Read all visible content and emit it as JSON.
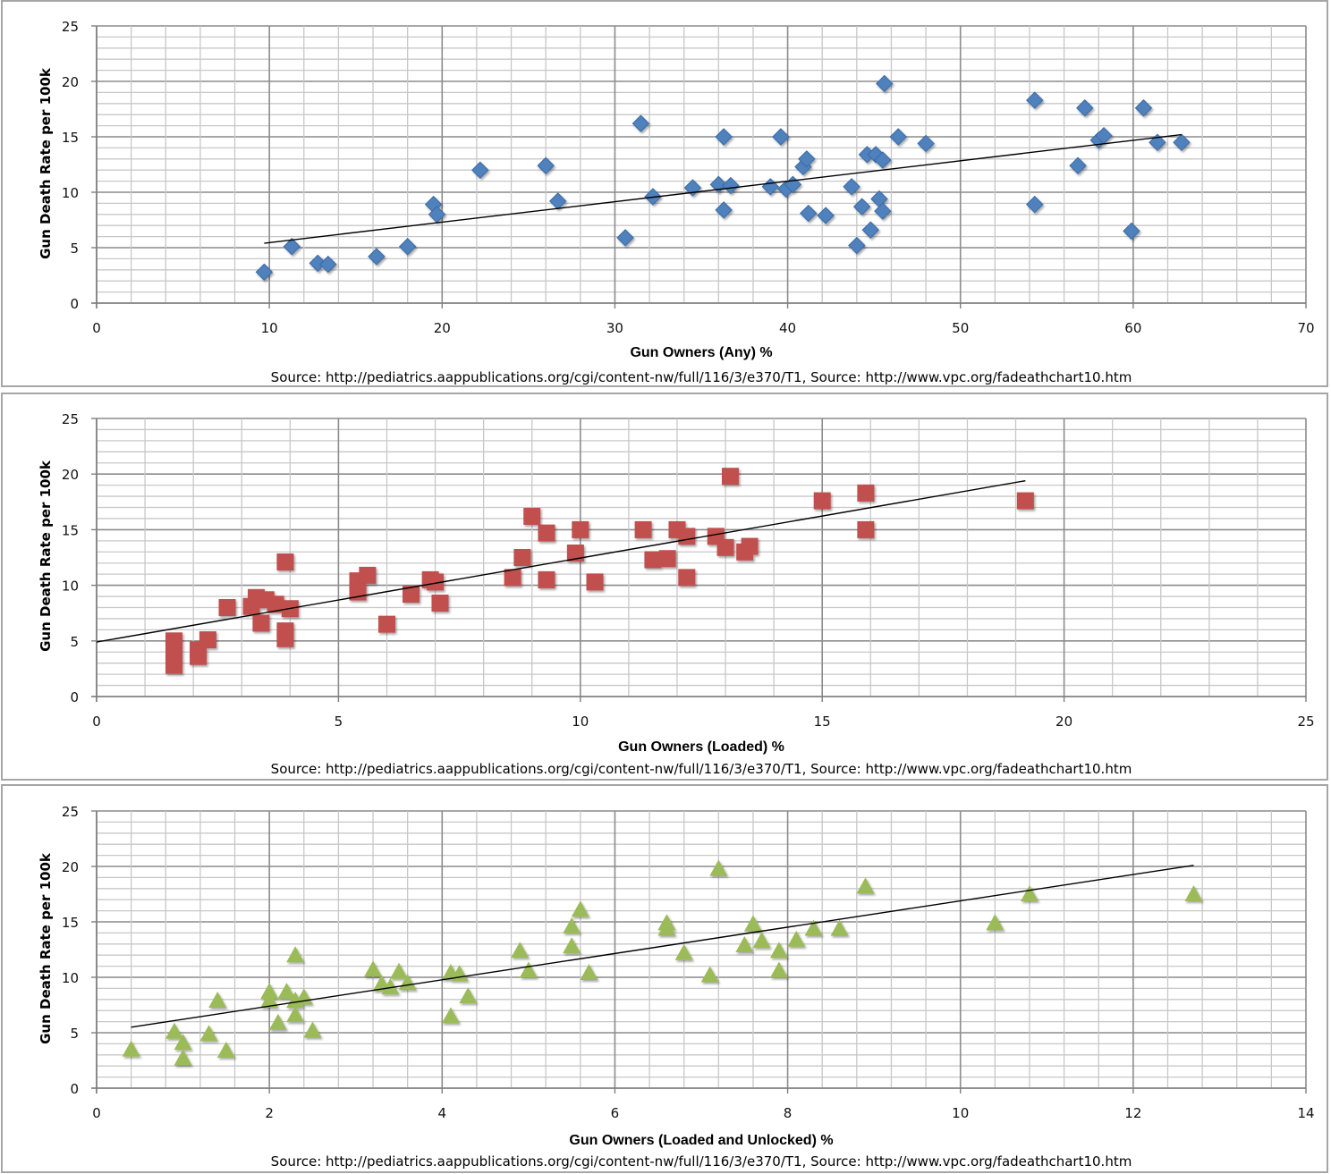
{
  "chart_data": [
    {
      "type": "scatter",
      "title": "",
      "xlabel": "Gun Owners (Any) %",
      "ylabel": "Gun Death Rate per 100k",
      "source": "Source: http://pediatrics.aappublications.org/cgi/content-nw/full/116/3/e370/T1, Source: http://www.vpc.org/fadeathchart10.htm",
      "xlim": [
        0,
        70
      ],
      "ylim": [
        0,
        25
      ],
      "x_major": 10,
      "x_minor": 2,
      "y_major": 5,
      "y_minor": 1,
      "grid": true,
      "x_ticks": [
        "0",
        "10",
        "20",
        "30",
        "40",
        "50",
        "60",
        "70"
      ],
      "y_ticks": [
        "0",
        "5",
        "10",
        "15",
        "20",
        "25"
      ],
      "marker": "diamond",
      "color": "#4f81bd",
      "trendline": {
        "x": [
          9.7,
          62.8
        ],
        "y": [
          5.4,
          15.2
        ]
      },
      "series": [
        {
          "name": "Any",
          "points": [
            [
              9.7,
              2.8
            ],
            [
              11.3,
              5.1
            ],
            [
              12.8,
              3.6
            ],
            [
              13.4,
              3.5
            ],
            [
              16.2,
              4.2
            ],
            [
              18.0,
              5.1
            ],
            [
              19.5,
              8.9
            ],
            [
              19.7,
              8.0
            ],
            [
              22.2,
              12.0
            ],
            [
              26.0,
              12.4
            ],
            [
              26.7,
              9.2
            ],
            [
              30.6,
              5.9
            ],
            [
              31.5,
              16.2
            ],
            [
              32.2,
              9.6
            ],
            [
              34.5,
              10.4
            ],
            [
              36.0,
              10.7
            ],
            [
              36.3,
              8.4
            ],
            [
              36.3,
              15.0
            ],
            [
              36.7,
              10.6
            ],
            [
              39.0,
              10.5
            ],
            [
              39.6,
              15.0
            ],
            [
              39.9,
              10.3
            ],
            [
              40.3,
              10.7
            ],
            [
              40.9,
              12.3
            ],
            [
              41.1,
              13.0
            ],
            [
              41.2,
              8.1
            ],
            [
              42.2,
              7.9
            ],
            [
              43.7,
              10.5
            ],
            [
              44.0,
              5.2
            ],
            [
              44.3,
              8.7
            ],
            [
              44.6,
              13.4
            ],
            [
              44.8,
              6.6
            ],
            [
              45.1,
              13.4
            ],
            [
              45.3,
              9.4
            ],
            [
              45.5,
              12.9
            ],
            [
              45.5,
              8.3
            ],
            [
              45.6,
              19.8
            ],
            [
              46.4,
              15.0
            ],
            [
              48.0,
              14.4
            ],
            [
              54.3,
              18.3
            ],
            [
              54.3,
              8.9
            ],
            [
              56.8,
              12.4
            ],
            [
              57.2,
              17.6
            ],
            [
              58.0,
              14.7
            ],
            [
              58.3,
              15.1
            ],
            [
              59.9,
              6.5
            ],
            [
              60.6,
              17.6
            ],
            [
              61.4,
              14.5
            ],
            [
              62.8,
              14.5
            ]
          ]
        }
      ]
    },
    {
      "type": "scatter",
      "title": "",
      "xlabel": "Gun Owners (Loaded) %",
      "ylabel": "Gun Death Rate per 100k",
      "source": "Source: http://pediatrics.aappublications.org/cgi/content-nw/full/116/3/e370/T1, Source: http://www.vpc.org/fadeathchart10.htm",
      "xlim": [
        0,
        25
      ],
      "ylim": [
        0,
        25
      ],
      "x_major": 5,
      "x_minor": 1,
      "y_major": 5,
      "y_minor": 1,
      "grid": true,
      "x_ticks": [
        "0",
        "5",
        "10",
        "15",
        "20",
        "25"
      ],
      "y_ticks": [
        "0",
        "5",
        "10",
        "15",
        "20",
        "25"
      ],
      "marker": "square",
      "color": "#c0504d",
      "trendline": {
        "x": [
          0,
          19.2
        ],
        "y": [
          4.9,
          19.4
        ]
      },
      "series": [
        {
          "name": "Loaded",
          "points": [
            [
              1.6,
              2.8
            ],
            [
              1.6,
              3.5
            ],
            [
              1.6,
              4.2
            ],
            [
              1.6,
              5.0
            ],
            [
              2.1,
              3.6
            ],
            [
              2.1,
              4.2
            ],
            [
              2.3,
              5.1
            ],
            [
              2.7,
              8.0
            ],
            [
              3.2,
              8.1
            ],
            [
              3.3,
              8.9
            ],
            [
              3.4,
              6.6
            ],
            [
              3.5,
              8.7
            ],
            [
              3.7,
              8.3
            ],
            [
              3.9,
              5.2
            ],
            [
              3.9,
              5.9
            ],
            [
              3.9,
              12.1
            ],
            [
              4.0,
              7.9
            ],
            [
              5.4,
              9.4
            ],
            [
              5.4,
              10.4
            ],
            [
              5.6,
              10.9
            ],
            [
              6.0,
              6.5
            ],
            [
              6.5,
              9.2
            ],
            [
              6.9,
              10.5
            ],
            [
              7.0,
              10.3
            ],
            [
              7.1,
              8.4
            ],
            [
              8.6,
              10.7
            ],
            [
              8.8,
              12.5
            ],
            [
              9.0,
              16.2
            ],
            [
              9.3,
              10.5
            ],
            [
              9.3,
              14.7
            ],
            [
              9.9,
              12.9
            ],
            [
              10.0,
              15.0
            ],
            [
              10.3,
              10.3
            ],
            [
              11.3,
              15.0
            ],
            [
              11.5,
              12.3
            ],
            [
              11.8,
              12.4
            ],
            [
              12.0,
              15.0
            ],
            [
              12.2,
              10.7
            ],
            [
              12.2,
              14.4
            ],
            [
              12.8,
              14.4
            ],
            [
              13.0,
              13.4
            ],
            [
              13.1,
              19.8
            ],
            [
              13.4,
              13.0
            ],
            [
              13.5,
              13.5
            ],
            [
              15.0,
              17.6
            ],
            [
              15.9,
              18.3
            ],
            [
              15.9,
              15.0
            ],
            [
              19.2,
              17.6
            ]
          ]
        }
      ]
    },
    {
      "type": "scatter",
      "title": "",
      "xlabel": "Gun Owners (Loaded and Unlocked) %",
      "ylabel": "Gun Death Rate per 100k",
      "source": "Source: http://pediatrics.aappublications.org/cgi/content-nw/full/116/3/e370/T1, Source: http://www.vpc.org/fadeathchart10.htm",
      "xlim": [
        0,
        14
      ],
      "ylim": [
        0,
        25
      ],
      "x_major": 2,
      "x_minor": 0.4,
      "y_major": 5,
      "y_minor": 1,
      "grid": true,
      "x_ticks": [
        "0",
        "2",
        "4",
        "6",
        "8",
        "10",
        "12",
        "14"
      ],
      "y_ticks": [
        "0",
        "5",
        "10",
        "15",
        "20",
        "25"
      ],
      "marker": "triangle",
      "color": "#9bbb59",
      "trendline": {
        "x": [
          0.4,
          12.7
        ],
        "y": [
          5.5,
          20.1
        ]
      },
      "series": [
        {
          "name": "Loaded and Unlocked",
          "points": [
            [
              0.4,
              3.5
            ],
            [
              0.9,
              5.1
            ],
            [
              1.0,
              4.1
            ],
            [
              1.0,
              2.7
            ],
            [
              1.3,
              4.9
            ],
            [
              1.4,
              7.9
            ],
            [
              1.5,
              3.4
            ],
            [
              2.0,
              8.7
            ],
            [
              2.0,
              7.9
            ],
            [
              2.1,
              5.9
            ],
            [
              2.2,
              8.7
            ],
            [
              2.3,
              7.9
            ],
            [
              2.3,
              6.6
            ],
            [
              2.3,
              12.0
            ],
            [
              2.4,
              8.2
            ],
            [
              2.5,
              5.2
            ],
            [
              3.2,
              10.7
            ],
            [
              3.3,
              9.4
            ],
            [
              3.4,
              9.1
            ],
            [
              3.5,
              10.5
            ],
            [
              3.6,
              9.5
            ],
            [
              4.1,
              10.4
            ],
            [
              4.1,
              6.5
            ],
            [
              4.2,
              10.3
            ],
            [
              4.3,
              8.3
            ],
            [
              4.9,
              12.4
            ],
            [
              5.0,
              10.6
            ],
            [
              5.5,
              12.8
            ],
            [
              5.5,
              14.6
            ],
            [
              5.6,
              16.1
            ],
            [
              5.7,
              10.4
            ],
            [
              6.6,
              14.9
            ],
            [
              6.6,
              14.4
            ],
            [
              6.8,
              12.2
            ],
            [
              7.1,
              10.2
            ],
            [
              7.2,
              19.8
            ],
            [
              7.5,
              12.9
            ],
            [
              7.6,
              14.8
            ],
            [
              7.7,
              13.3
            ],
            [
              7.9,
              12.4
            ],
            [
              7.9,
              10.6
            ],
            [
              8.1,
              13.4
            ],
            [
              8.3,
              14.4
            ],
            [
              8.6,
              14.4
            ],
            [
              8.9,
              18.2
            ],
            [
              10.4,
              14.9
            ],
            [
              10.8,
              17.5
            ],
            [
              12.7,
              17.5
            ]
          ]
        }
      ]
    }
  ]
}
